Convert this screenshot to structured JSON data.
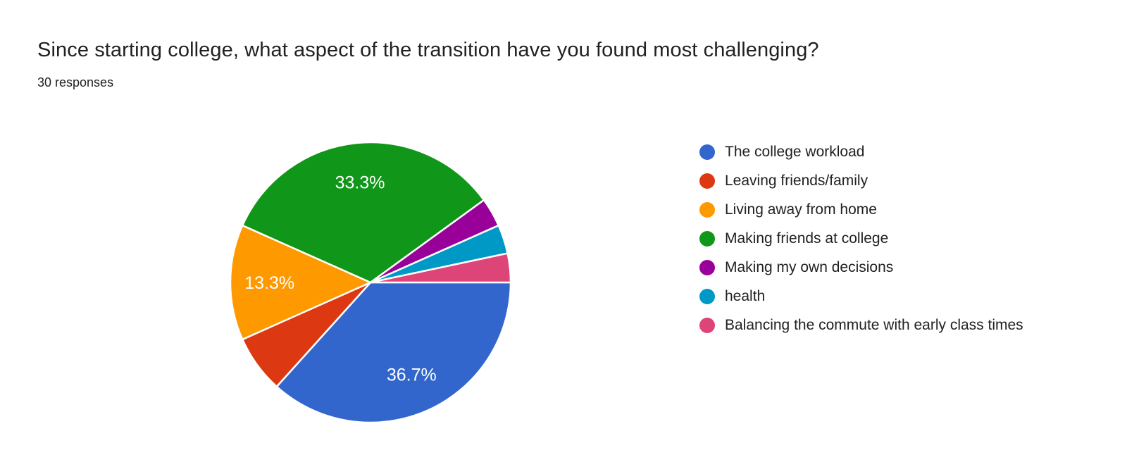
{
  "header": {
    "title": "Since starting college, what aspect of the transition have you found most challenging?",
    "responses": "30 responses"
  },
  "chart_data": {
    "type": "pie",
    "title": "Since starting college, what aspect of the transition have you found most challenging?",
    "subtitle": "30 responses",
    "total_responses": 30,
    "start_angle_deg": 0,
    "direction": "clockwise",
    "legend_position": "right",
    "slice_label_color": "#ffffff",
    "slice_border_color": "#ffffff",
    "slices": [
      {
        "label": "The college workload",
        "count": 11,
        "percent": 36.7,
        "percent_label": "36.7%",
        "color": "#3366CC",
        "show_label": true
      },
      {
        "label": "Leaving friends/family",
        "count": 2,
        "percent": 6.7,
        "percent_label": "6.7%",
        "color": "#DC3912",
        "show_label": false
      },
      {
        "label": "Living away from home",
        "count": 4,
        "percent": 13.3,
        "percent_label": "13.3%",
        "color": "#FF9900",
        "show_label": true
      },
      {
        "label": "Making friends at college",
        "count": 10,
        "percent": 33.3,
        "percent_label": "33.3%",
        "color": "#109618",
        "show_label": true
      },
      {
        "label": "Making my own decisions",
        "count": 1,
        "percent": 3.3,
        "percent_label": "3.3%",
        "color": "#990099",
        "show_label": false
      },
      {
        "label": "health",
        "count": 1,
        "percent": 3.3,
        "percent_label": "3.3%",
        "color": "#0099C6",
        "show_label": false
      },
      {
        "label": "Balancing the commute with early class times",
        "count": 1,
        "percent": 3.3,
        "percent_label": "3.3%",
        "color": "#DD4477",
        "show_label": false
      }
    ]
  },
  "colors": {
    "background": "#ffffff",
    "text": "#212121"
  }
}
